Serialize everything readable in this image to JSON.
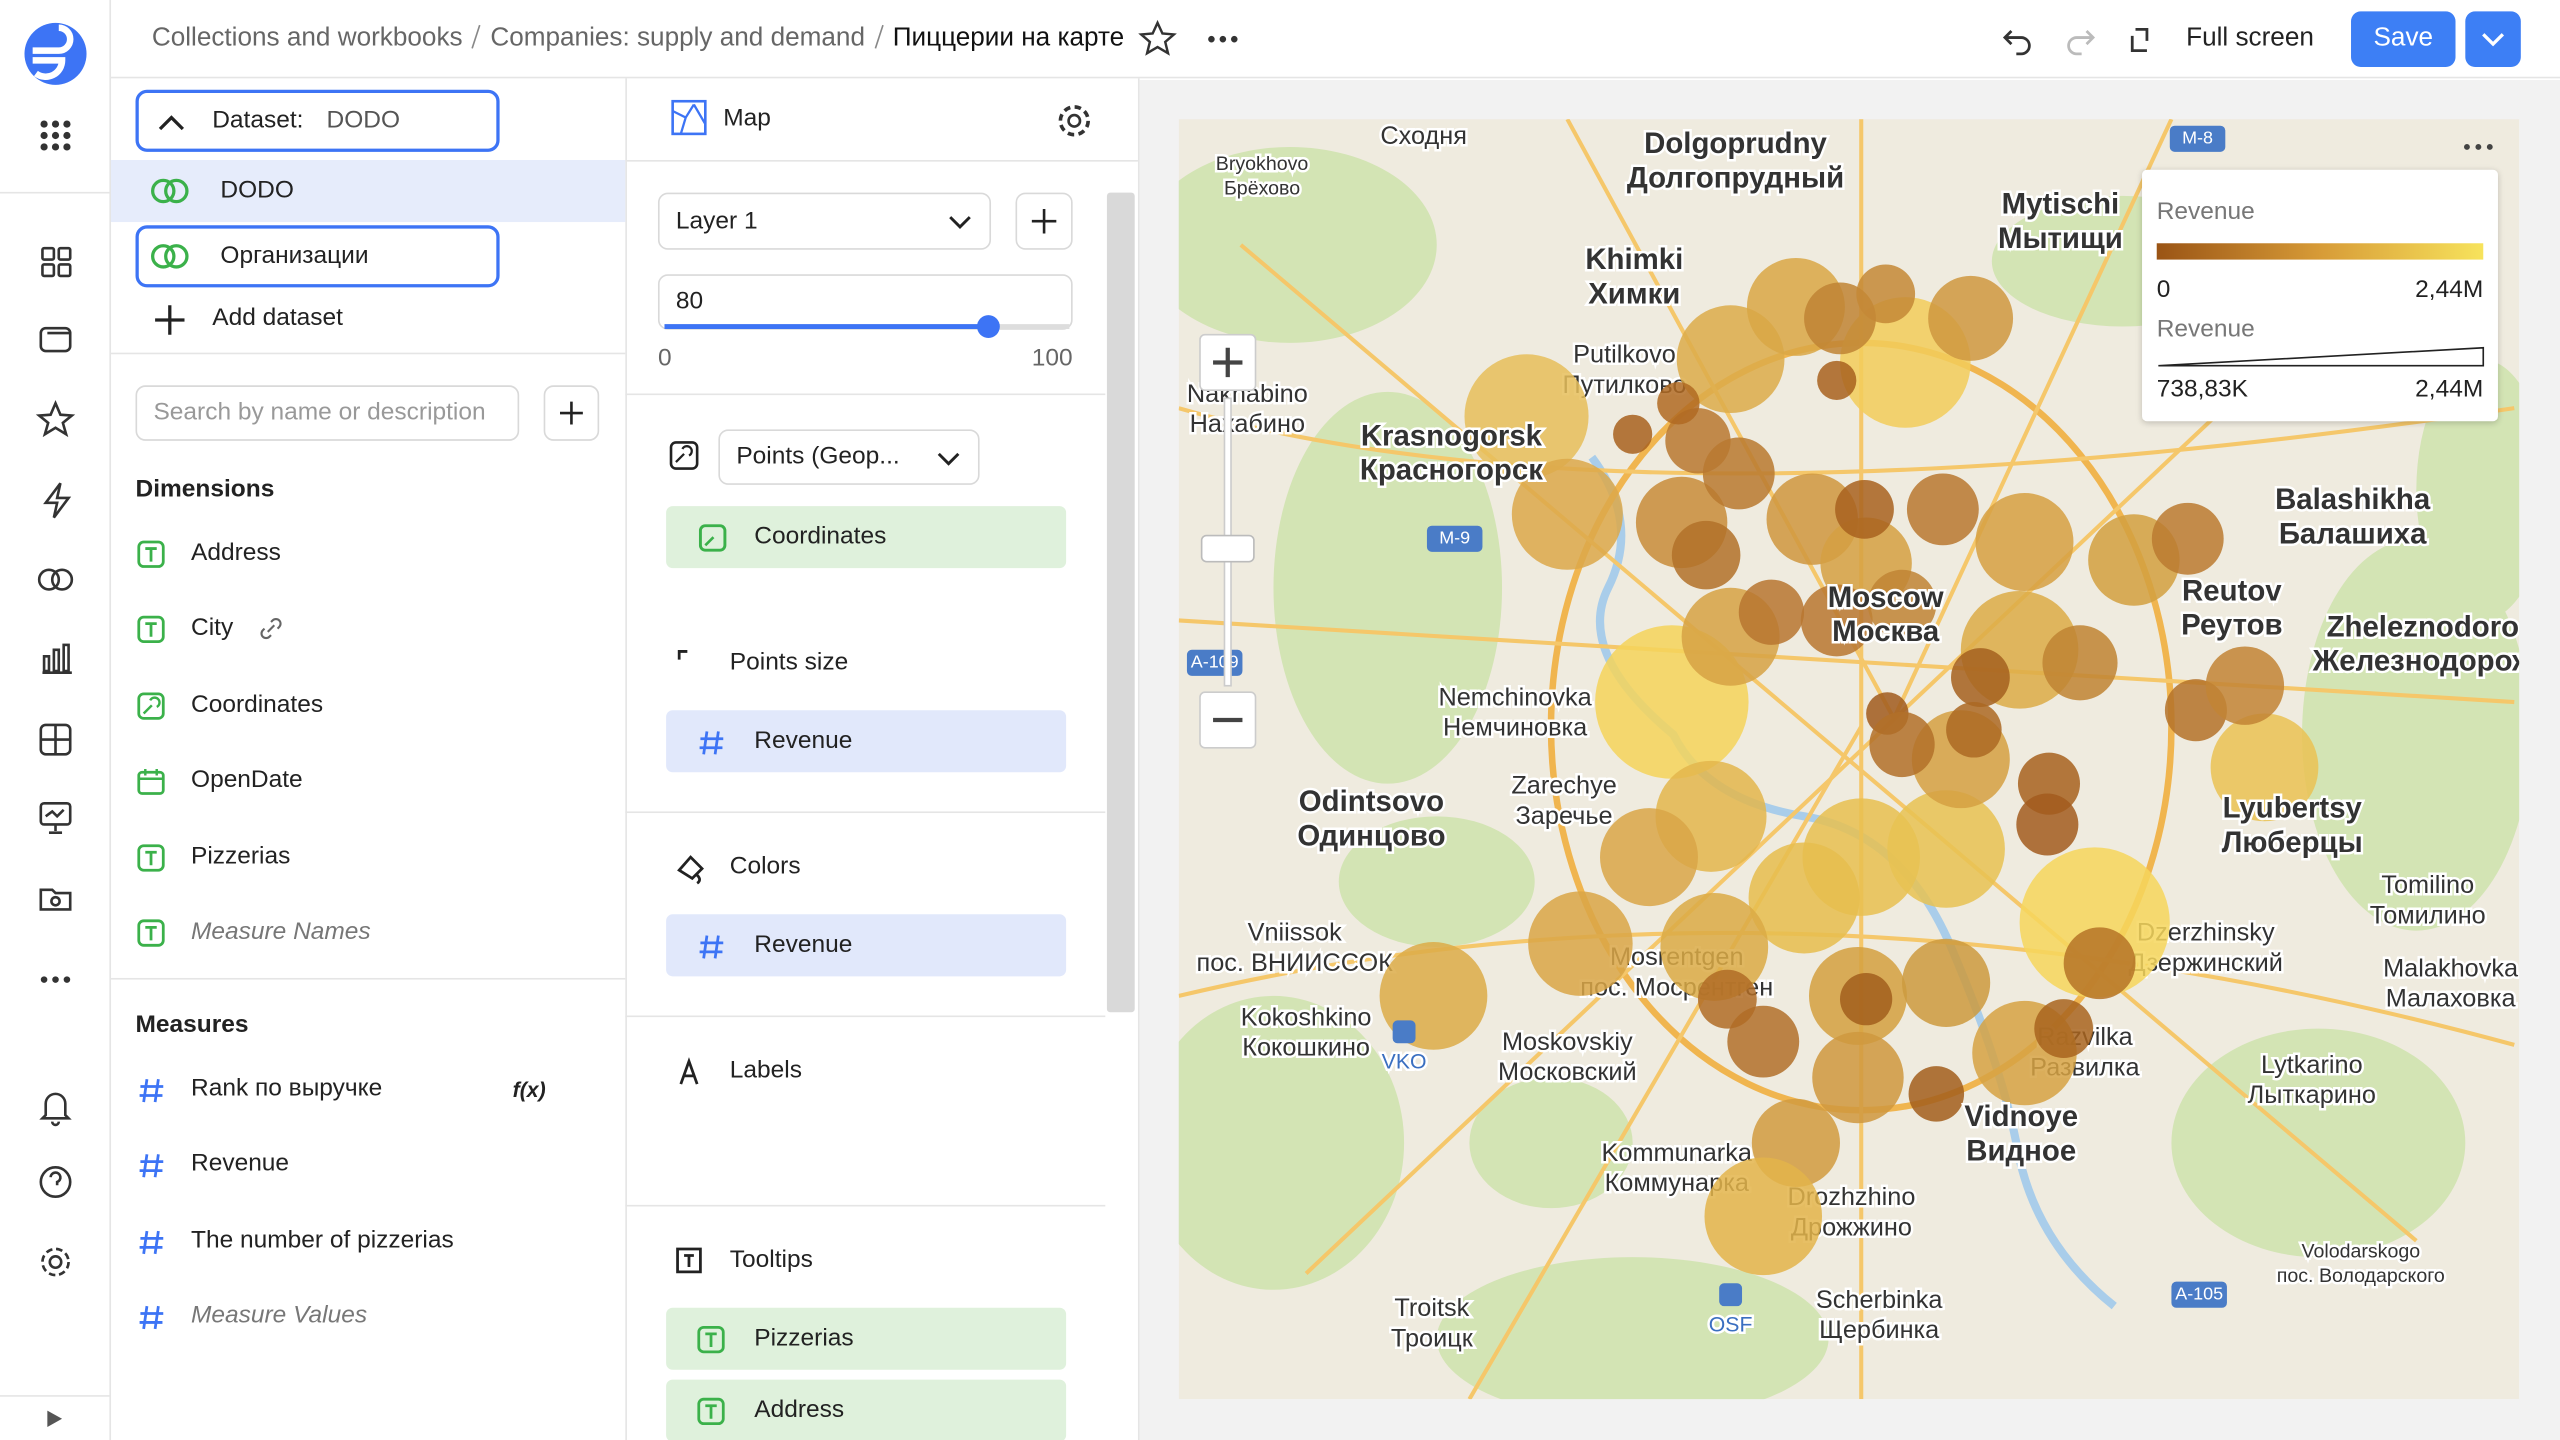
{
  "header": {
    "breadcrumbs": [
      "Collections and workbooks",
      "Companies: supply and demand",
      "Пиццерии на карте"
    ],
    "full_screen": "Full screen",
    "save": "Save"
  },
  "datasets": {
    "selector_label": "Dataset:",
    "selector_value": "DODO",
    "items": [
      "DODO",
      "Организации"
    ],
    "add": "Add dataset",
    "search_placeholder": "Search by name or description"
  },
  "dimensions": {
    "title": "Dimensions",
    "items": [
      "Address",
      "City",
      "Coordinates",
      "OpenDate",
      "Pizzerias",
      "Measure Names"
    ]
  },
  "measures": {
    "title": "Measures",
    "items": [
      "Rank по выручке",
      "Revenue",
      "The number of pizzerias",
      "Measure Values"
    ],
    "formula_badge": "f(x)"
  },
  "visualization": {
    "type": "Map",
    "layer": "Layer 1",
    "transparency": 80,
    "slider_min": 0,
    "slider_max": 100,
    "layer_type": "Points (Geop...",
    "geo_field": "Coordinates",
    "sections": [
      {
        "title": "Points size",
        "fields": [
          "Revenue"
        ]
      },
      {
        "title": "Colors",
        "fields": [
          "Revenue"
        ]
      },
      {
        "title": "Labels",
        "fields": []
      },
      {
        "title": "Tooltips",
        "fields": [
          "Pizzerias",
          "Address"
        ]
      }
    ]
  },
  "map": {
    "legend": {
      "color_title": "Revenue",
      "color_min": "0",
      "color_max": "2,44M",
      "size_title": "Revenue",
      "size_min": "738,83K",
      "size_max": "2,44M"
    },
    "labels": [
      {
        "lines": [
          "Сходня"
        ]
      },
      {
        "lines": [
          "Bryokhovo",
          "Брёхово"
        ],
        "small": true
      },
      {
        "lines": [
          "Dolgoprudny",
          "Долгопрудный"
        ],
        "bold": true
      },
      {
        "lines": [
          "Mytischi",
          "Мытищи"
        ],
        "bold": true
      },
      {
        "lines": [
          "Khimki",
          "Химки"
        ],
        "bold": true
      },
      {
        "lines": [
          "Putilkovo",
          "Путилково"
        ]
      },
      {
        "lines": [
          "Nakhabino",
          "Нахабино"
        ]
      },
      {
        "lines": [
          "Krasnogorsk",
          "Красногорск"
        ],
        "bold": true
      },
      {
        "lines": [
          "Balashikha",
          "Балашиха"
        ],
        "bold": true
      },
      {
        "lines": [
          "Reutov",
          "Реутов"
        ],
        "bold": true
      },
      {
        "lines": [
          "Zheleznodoro",
          "Железнодорож"
        ],
        "bold": true
      },
      {
        "lines": [
          "Moscow",
          "Москва"
        ],
        "bold": true
      },
      {
        "lines": [
          "Nemchinovka",
          "Немчиновка"
        ]
      },
      {
        "lines": [
          "Odintsovo",
          "Одинцово"
        ],
        "bold": true
      },
      {
        "lines": [
          "Zarechye",
          "Заречье"
        ]
      },
      {
        "lines": [
          "Lyubertsy",
          "Люберцы"
        ],
        "bold": true
      },
      {
        "lines": [
          "Tomilino",
          "Томилино"
        ]
      },
      {
        "lines": [
          "Vniissok",
          "пос. ВНИИССОК"
        ]
      },
      {
        "lines": [
          "Dzerzhinsky",
          "Дзержинский"
        ]
      },
      {
        "lines": [
          "Malakhovka",
          "Малаховка"
        ]
      },
      {
        "lines": [
          "Mosrentgen",
          "пос. Мосрентген"
        ]
      },
      {
        "lines": [
          "Kokoshkino",
          "Кокошкино"
        ]
      },
      {
        "lines": [
          "Moskovskiy",
          "Московский"
        ]
      },
      {
        "lines": [
          "Razvilka",
          "Развилка"
        ]
      },
      {
        "lines": [
          "Lytkarino",
          "Лыткарино"
        ]
      },
      {
        "lines": [
          "Vidnoye",
          "Видное"
        ],
        "bold": true
      },
      {
        "lines": [
          "Kommunarka",
          "Коммунарка"
        ]
      },
      {
        "lines": [
          "Drozhzhino",
          "Дрожжино"
        ]
      },
      {
        "lines": [
          "Volodarskogo",
          "пос. Володарского"
        ],
        "small": true
      },
      {
        "lines": [
          "Scherbinka",
          "Щербинка"
        ]
      },
      {
        "lines": [
          "Troitsk",
          "Троицк"
        ]
      }
    ],
    "road_signs": [
      "M-8",
      "M-9",
      "A-109",
      "A-105"
    ],
    "airports": [
      "VKO",
      "OSF"
    ]
  }
}
